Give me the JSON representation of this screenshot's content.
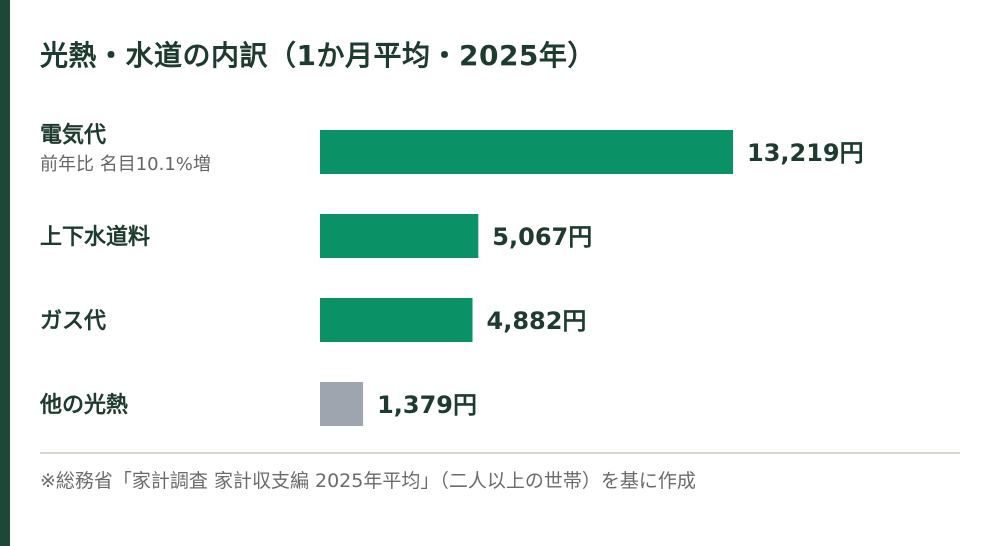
{
  "title": "光熱・水道の内訳（1か月平均・2025年）",
  "note": "※総務省「家計調査 家計収支編 2025年平均」（二人以上の世帯）を基に作成",
  "colors": {
    "accent": "#1d4736",
    "bar_primary": "#0a9165",
    "bar_other": "#9ea5ae",
    "text": "#1d3b2e"
  },
  "chart_data": {
    "type": "bar",
    "orientation": "horizontal",
    "categories": [
      "電気代",
      "上下水道料",
      "ガス代",
      "他の光熱"
    ],
    "subtitles": [
      "前年比 名目10.1%増",
      "",
      "",
      ""
    ],
    "values": [
      13219,
      5067,
      4882,
      1379
    ],
    "value_labels": [
      "13,219円",
      "5,067円",
      "4,882円",
      "1,379円"
    ],
    "bar_colors": [
      "#0a9165",
      "#0a9165",
      "#0a9165",
      "#9ea5ae"
    ],
    "unit": "円"
  }
}
